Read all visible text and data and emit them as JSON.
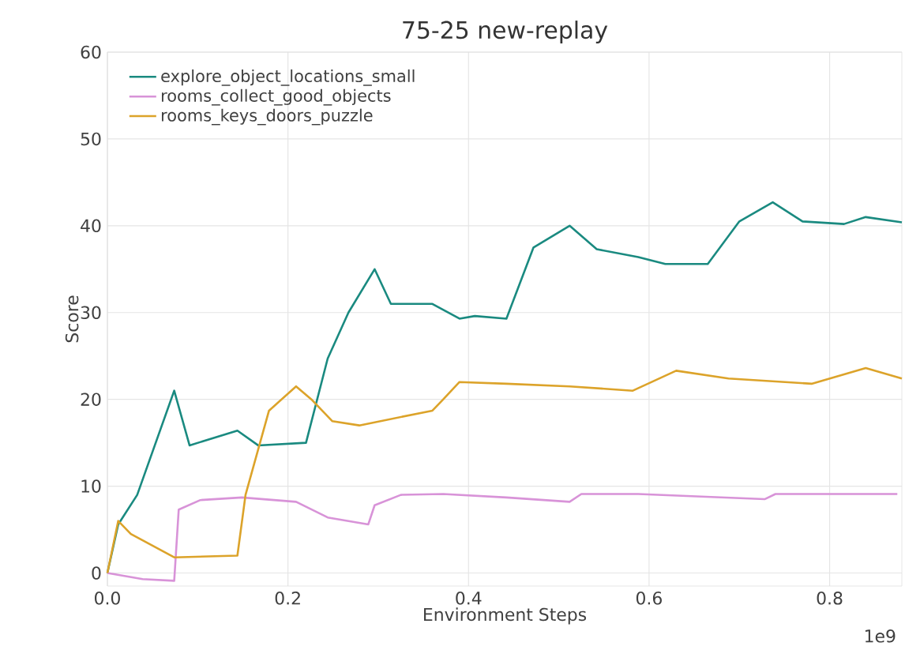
{
  "chart_data": {
    "type": "line",
    "title": "75-25 new-replay",
    "xlabel": "Environment Steps",
    "ylabel": "Score",
    "annotations": [
      "1e9"
    ],
    "xlim": [
      0,
      0.88
    ],
    "ylim": [
      -1.5,
      60
    ],
    "xticks": [
      {
        "value": 0,
        "label": "0.0"
      },
      {
        "value": 0.2,
        "label": "0.2"
      },
      {
        "value": 0.4,
        "label": "0.4"
      },
      {
        "value": 0.6,
        "label": "0.6"
      },
      {
        "value": 0.8,
        "label": "0.8"
      }
    ],
    "yticks": [
      0,
      10,
      20,
      30,
      40,
      50,
      60
    ],
    "grid": true,
    "legend": "top left",
    "line_style": "solid",
    "marker": "none",
    "series": [
      {
        "name": "explore_object_locations_small",
        "color": "#1a8a80",
        "x": [
          0,
          0.012,
          0.033,
          0.074,
          0.091,
          0.144,
          0.167,
          0.22,
          0.244,
          0.267,
          0.296,
          0.314,
          0.36,
          0.39,
          0.407,
          0.442,
          0.472,
          0.512,
          0.542,
          0.588,
          0.618,
          0.665,
          0.7,
          0.737,
          0.77,
          0.816,
          0.84,
          0.88
        ],
        "values": [
          0,
          5.6,
          9,
          21,
          14.7,
          16.4,
          14.7,
          15,
          24.7,
          30,
          35,
          31,
          31,
          29.3,
          29.6,
          29.3,
          37.5,
          40,
          37.3,
          36.4,
          35.6,
          35.6,
          40.5,
          42.7,
          40.5,
          40.2,
          41,
          40.4
        ]
      },
      {
        "name": "rooms_collect_good_objects",
        "color": "#d893d8",
        "x": [
          0,
          0.039,
          0.074,
          0.079,
          0.103,
          0.149,
          0.209,
          0.244,
          0.289,
          0.296,
          0.325,
          0.372,
          0.442,
          0.512,
          0.525,
          0.588,
          0.728,
          0.74,
          0.875
        ],
        "values": [
          0,
          -0.7,
          -0.9,
          7.3,
          8.4,
          8.7,
          8.2,
          6.4,
          5.6,
          7.8,
          9,
          9.1,
          8.7,
          8.2,
          9.1,
          9.1,
          8.5,
          9.1,
          9.1
        ]
      },
      {
        "name": "rooms_keys_doors_puzzle",
        "color": "#dca32a",
        "x": [
          0,
          0.012,
          0.026,
          0.074,
          0.144,
          0.153,
          0.179,
          0.209,
          0.226,
          0.249,
          0.279,
          0.36,
          0.372,
          0.39,
          0.442,
          0.512,
          0.582,
          0.63,
          0.688,
          0.78,
          0.84,
          0.88
        ],
        "values": [
          0,
          6,
          4.5,
          1.8,
          2,
          9,
          18.7,
          21.5,
          20,
          17.5,
          17,
          18.7,
          20,
          22,
          21.8,
          21.5,
          21,
          23.3,
          22.4,
          21.8,
          23.6,
          22.4
        ]
      }
    ]
  }
}
